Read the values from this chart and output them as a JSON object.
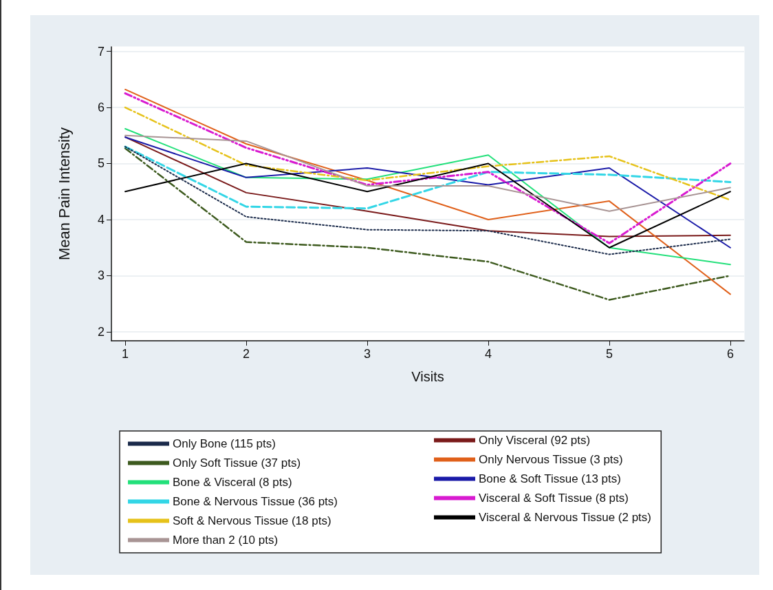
{
  "chart_data": {
    "type": "line",
    "xlabel": "Visits",
    "ylabel": "Mean Pain Intensity",
    "x": [
      1,
      2,
      3,
      4,
      5,
      6
    ],
    "xlim": [
      0.886,
      6.114
    ],
    "xticks": [
      1,
      2,
      3,
      4,
      5,
      6
    ],
    "ylim": [
      1.84,
      7.08
    ],
    "yticks": [
      2,
      3,
      4,
      5,
      6,
      7
    ],
    "grid": "y",
    "legend": "bottom",
    "marker": "none",
    "series": [
      {
        "name": "Only Bone (115 pts)",
        "color": "#1a2a4a",
        "line_style": "dotted",
        "values": [
          5.3,
          4.05,
          3.82,
          3.8,
          3.38,
          3.65
        ]
      },
      {
        "name": "Only Visceral (92 pts)",
        "color": "#7a1a1a",
        "line_style": "solid",
        "values": [
          5.47,
          4.48,
          4.15,
          3.8,
          3.7,
          3.72
        ]
      },
      {
        "name": "Only Soft Tissue (37 pts)",
        "color": "#3d5a1e",
        "line_style": "dashdot",
        "values": [
          5.27,
          3.6,
          3.5,
          3.25,
          2.57,
          3.0
        ]
      },
      {
        "name": "Only Nervous Tissue (3 pts)",
        "color": "#e0601a",
        "line_style": "solid",
        "values": [
          6.32,
          5.35,
          4.7,
          4.0,
          4.33,
          2.67
        ]
      },
      {
        "name": "Bone & Visceral (8 pts)",
        "color": "#22e07a",
        "line_style": "solid",
        "values": [
          5.62,
          4.75,
          4.72,
          5.15,
          3.5,
          3.2
        ]
      },
      {
        "name": "Bone & Soft Tissue (13 pts)",
        "color": "#1a1aa8",
        "line_style": "solid",
        "values": [
          5.47,
          4.75,
          4.92,
          4.62,
          4.92,
          3.5
        ]
      },
      {
        "name": "Bone & Nervous Tissue (36 pts)",
        "color": "#33d6e6",
        "line_style": "dashed",
        "values": [
          5.3,
          4.23,
          4.2,
          4.85,
          4.8,
          4.67
        ]
      },
      {
        "name": "Visceral & Soft Tissue (8 pts)",
        "color": "#d81ad0",
        "line_style": "dashdotdot",
        "values": [
          6.25,
          5.28,
          4.62,
          4.85,
          3.58,
          5.0
        ]
      },
      {
        "name": "Soft & Nervous Tissue (18 pts)",
        "color": "#e6c21a",
        "line_style": "dashdot",
        "values": [
          6.0,
          4.97,
          4.7,
          4.95,
          5.13,
          4.35
        ]
      },
      {
        "name": "Visceral & Nervous Tissue (2 pts)",
        "color": "#000000",
        "line_style": "solid",
        "values": [
          4.5,
          5.0,
          4.5,
          5.0,
          3.5,
          4.5
        ]
      },
      {
        "name": "More than 2 (10 pts)",
        "color": "#a89494",
        "line_style": "solid",
        "values": [
          5.5,
          5.4,
          4.6,
          4.6,
          4.15,
          4.57
        ]
      }
    ]
  }
}
